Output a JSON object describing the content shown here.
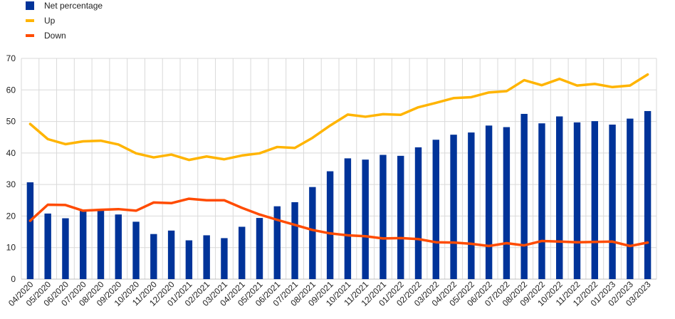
{
  "chart_data": {
    "type": "bar",
    "title": "",
    "xlabel": "",
    "ylabel": "",
    "ylim": [
      0,
      70
    ],
    "yticks": [
      0,
      10,
      20,
      30,
      40,
      50,
      60,
      70
    ],
    "grid": true,
    "legend_position": "top-left",
    "categories": [
      "04/2020",
      "05/2020",
      "06/2020",
      "07/2020",
      "08/2020",
      "09/2020",
      "10/2020",
      "11/2020",
      "12/2020",
      "01/2021",
      "02/2021",
      "03/2021",
      "04/2021",
      "05/2021",
      "06/2021",
      "07/2021",
      "08/2021",
      "09/2021",
      "10/2021",
      "11/2021",
      "12/2021",
      "01/2022",
      "02/2022",
      "03/2022",
      "04/2022",
      "05/2022",
      "06/2022",
      "07/2022",
      "08/2022",
      "09/2022",
      "10/2022",
      "11/2022",
      "12/2022",
      "01/2023",
      "02/2023",
      "03/2023"
    ],
    "series": [
      {
        "name": "Net percentage",
        "kind": "bar",
        "color": "#003399",
        "values": [
          30.7,
          20.8,
          19.3,
          22.0,
          22.0,
          20.5,
          18.2,
          14.3,
          15.4,
          12.3,
          13.9,
          13.0,
          16.6,
          19.4,
          23.1,
          24.4,
          29.2,
          34.2,
          38.3,
          37.9,
          39.4,
          39.1,
          41.8,
          44.2,
          45.8,
          46.5,
          48.7,
          48.2,
          52.4,
          49.4,
          51.6,
          49.7,
          50.1,
          49.0,
          50.9,
          53.3
        ]
      },
      {
        "name": "Up",
        "kind": "line",
        "color": "#FFB400",
        "values": [
          49.2,
          44.4,
          42.8,
          43.7,
          43.9,
          42.7,
          39.9,
          38.6,
          39.5,
          37.8,
          38.9,
          38.0,
          39.2,
          39.9,
          41.9,
          41.6,
          44.8,
          48.7,
          52.2,
          51.5,
          52.3,
          52.1,
          54.5,
          55.9,
          57.4,
          57.7,
          59.2,
          59.6,
          63.1,
          61.5,
          63.5,
          61.4,
          61.9,
          60.9,
          61.4,
          64.9
        ]
      },
      {
        "name": "Down",
        "kind": "line",
        "color": "#FF4B00",
        "values": [
          18.5,
          23.6,
          23.5,
          21.7,
          22.0,
          22.2,
          21.7,
          24.3,
          24.1,
          25.5,
          25.0,
          25.0,
          22.6,
          20.5,
          18.8,
          17.2,
          15.6,
          14.5,
          13.9,
          13.6,
          12.9,
          13.0,
          12.7,
          11.7,
          11.6,
          11.2,
          10.5,
          11.4,
          10.7,
          12.1,
          11.9,
          11.7,
          11.8,
          11.9,
          10.5,
          11.6
        ]
      }
    ]
  }
}
